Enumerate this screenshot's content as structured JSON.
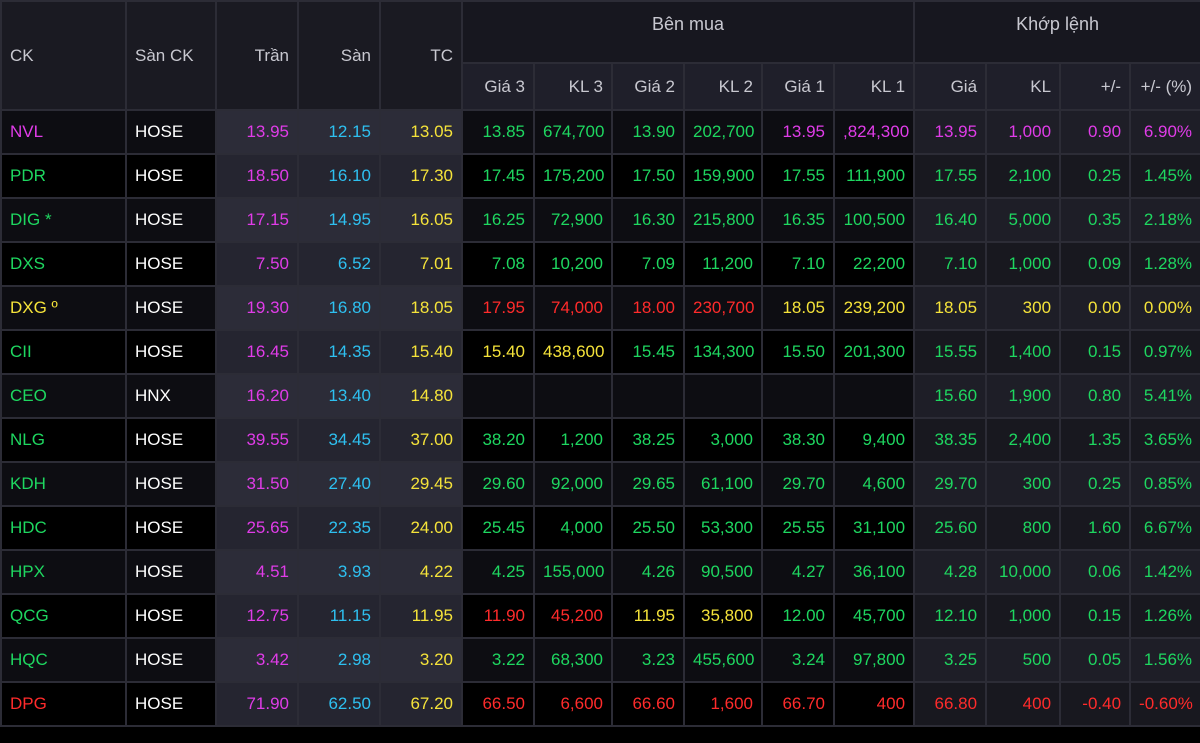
{
  "header": {
    "ck": "CK",
    "san_ck": "Sàn CK",
    "tran": "Trần",
    "san": "Sàn",
    "tc": "TC",
    "ben_mua": "Bên mua",
    "khop_lenh": "Khớp lệnh",
    "gia3": "Giá 3",
    "kl3": "KL 3",
    "gia2": "Giá 2",
    "kl2": "KL 2",
    "gia1": "Giá 1",
    "kl1": "KL 1",
    "gia": "Giá",
    "kl": "KL",
    "change": "+/-",
    "change_pct": "+/- (%)"
  },
  "colors": {
    "ceiling": "#e03ce8",
    "floor": "#2ec0f0",
    "reference": "#f5e33a",
    "up": "#1ed760",
    "down": "#ff2b2b"
  },
  "rows": [
    {
      "sym": "NVL",
      "exch": "HOSE",
      "tran": "13.95",
      "san": "12.15",
      "tc": "13.05",
      "g3": "13.85",
      "k3": "674,700",
      "g2": "13.90",
      "k2": "202,700",
      "g1": "13.95",
      "k1": ",824,300",
      "gia": "13.95",
      "kl": "1,000",
      "chg": "0.90",
      "pct": "6.90%",
      "c_sym": "ceil",
      "c_g3": "up",
      "c_g2": "up",
      "c_g1": "ceil",
      "c_m": "ceil"
    },
    {
      "sym": "PDR",
      "exch": "HOSE",
      "tran": "18.50",
      "san": "16.10",
      "tc": "17.30",
      "g3": "17.45",
      "k3": "175,200",
      "g2": "17.50",
      "k2": "159,900",
      "g1": "17.55",
      "k1": "111,900",
      "gia": "17.55",
      "kl": "2,100",
      "chg": "0.25",
      "pct": "1.45%",
      "c_sym": "up",
      "c_g3": "up",
      "c_g2": "up",
      "c_g1": "up",
      "c_m": "up"
    },
    {
      "sym": "DIG *",
      "exch": "HOSE",
      "tran": "17.15",
      "san": "14.95",
      "tc": "16.05",
      "g3": "16.25",
      "k3": "72,900",
      "g2": "16.30",
      "k2": "215,800",
      "g1": "16.35",
      "k1": "100,500",
      "gia": "16.40",
      "kl": "5,000",
      "chg": "0.35",
      "pct": "2.18%",
      "c_sym": "up",
      "c_g3": "up",
      "c_g2": "up",
      "c_g1": "up",
      "c_m": "up"
    },
    {
      "sym": "DXS",
      "exch": "HOSE",
      "tran": "7.50",
      "san": "6.52",
      "tc": "7.01",
      "g3": "7.08",
      "k3": "10,200",
      "g2": "7.09",
      "k2": "11,200",
      "g1": "7.10",
      "k1": "22,200",
      "gia": "7.10",
      "kl": "1,000",
      "chg": "0.09",
      "pct": "1.28%",
      "c_sym": "up",
      "c_g3": "up",
      "c_g2": "up",
      "c_g1": "up",
      "c_m": "up"
    },
    {
      "sym": "DXG º",
      "exch": "HOSE",
      "tran": "19.30",
      "san": "16.80",
      "tc": "18.05",
      "g3": "17.95",
      "k3": "74,000",
      "g2": "18.00",
      "k2": "230,700",
      "g1": "18.05",
      "k1": "239,200",
      "gia": "18.05",
      "kl": "300",
      "chg": "0.00",
      "pct": "0.00%",
      "c_sym": "ref",
      "c_g3": "down",
      "c_g2": "down",
      "c_g1": "ref",
      "c_m": "ref"
    },
    {
      "sym": "CII",
      "exch": "HOSE",
      "tran": "16.45",
      "san": "14.35",
      "tc": "15.40",
      "g3": "15.40",
      "k3": "438,600",
      "g2": "15.45",
      "k2": "134,300",
      "g1": "15.50",
      "k1": "201,300",
      "gia": "15.55",
      "kl": "1,400",
      "chg": "0.15",
      "pct": "0.97%",
      "c_sym": "up",
      "c_g3": "ref",
      "c_g2": "up",
      "c_g1": "up",
      "c_m": "up"
    },
    {
      "sym": "CEO",
      "exch": "HNX",
      "tran": "16.20",
      "san": "13.40",
      "tc": "14.80",
      "g3": "",
      "k3": "",
      "g2": "",
      "k2": "",
      "g1": "",
      "k1": "",
      "gia": "15.60",
      "kl": "1,900",
      "chg": "0.80",
      "pct": "5.41%",
      "c_sym": "up",
      "c_g3": "up",
      "c_g2": "up",
      "c_g1": "up",
      "c_m": "up"
    },
    {
      "sym": "NLG",
      "exch": "HOSE",
      "tran": "39.55",
      "san": "34.45",
      "tc": "37.00",
      "g3": "38.20",
      "k3": "1,200",
      "g2": "38.25",
      "k2": "3,000",
      "g1": "38.30",
      "k1": "9,400",
      "gia": "38.35",
      "kl": "2,400",
      "chg": "1.35",
      "pct": "3.65%",
      "c_sym": "up",
      "c_g3": "up",
      "c_g2": "up",
      "c_g1": "up",
      "c_m": "up"
    },
    {
      "sym": "KDH",
      "exch": "HOSE",
      "tran": "31.50",
      "san": "27.40",
      "tc": "29.45",
      "g3": "29.60",
      "k3": "92,000",
      "g2": "29.65",
      "k2": "61,100",
      "g1": "29.70",
      "k1": "4,600",
      "gia": "29.70",
      "kl": "300",
      "chg": "0.25",
      "pct": "0.85%",
      "c_sym": "up",
      "c_g3": "up",
      "c_g2": "up",
      "c_g1": "up",
      "c_m": "up"
    },
    {
      "sym": "HDC",
      "exch": "HOSE",
      "tran": "25.65",
      "san": "22.35",
      "tc": "24.00",
      "g3": "25.45",
      "k3": "4,000",
      "g2": "25.50",
      "k2": "53,300",
      "g1": "25.55",
      "k1": "31,100",
      "gia": "25.60",
      "kl": "800",
      "chg": "1.60",
      "pct": "6.67%",
      "c_sym": "up",
      "c_g3": "up",
      "c_g2": "up",
      "c_g1": "up",
      "c_m": "up"
    },
    {
      "sym": "HPX",
      "exch": "HOSE",
      "tran": "4.51",
      "san": "3.93",
      "tc": "4.22",
      "g3": "4.25",
      "k3": "155,000",
      "g2": "4.26",
      "k2": "90,500",
      "g1": "4.27",
      "k1": "36,100",
      "gia": "4.28",
      "kl": "10,000",
      "chg": "0.06",
      "pct": "1.42%",
      "c_sym": "up",
      "c_g3": "up",
      "c_g2": "up",
      "c_g1": "up",
      "c_m": "up"
    },
    {
      "sym": "QCG",
      "exch": "HOSE",
      "tran": "12.75",
      "san": "11.15",
      "tc": "11.95",
      "g3": "11.90",
      "k3": "45,200",
      "g2": "11.95",
      "k2": "35,800",
      "g1": "12.00",
      "k1": "45,700",
      "gia": "12.10",
      "kl": "1,000",
      "chg": "0.15",
      "pct": "1.26%",
      "c_sym": "up",
      "c_g3": "down",
      "c_g2": "ref",
      "c_g1": "up",
      "c_m": "up"
    },
    {
      "sym": "HQC",
      "exch": "HOSE",
      "tran": "3.42",
      "san": "2.98",
      "tc": "3.20",
      "g3": "3.22",
      "k3": "68,300",
      "g2": "3.23",
      "k2": "455,600",
      "g1": "3.24",
      "k1": "97,800",
      "gia": "3.25",
      "kl": "500",
      "chg": "0.05",
      "pct": "1.56%",
      "c_sym": "up",
      "c_g3": "up",
      "c_g2": "up",
      "c_g1": "up",
      "c_m": "up"
    },
    {
      "sym": "DPG",
      "exch": "HOSE",
      "tran": "71.90",
      "san": "62.50",
      "tc": "67.20",
      "g3": "66.50",
      "k3": "6,600",
      "g2": "66.60",
      "k2": "1,600",
      "g1": "66.70",
      "k1": "400",
      "gia": "66.80",
      "kl": "400",
      "chg": "-0.40",
      "pct": "-0.60%",
      "c_sym": "down",
      "c_g3": "down",
      "c_g2": "down",
      "c_g1": "down",
      "c_m": "down"
    }
  ]
}
